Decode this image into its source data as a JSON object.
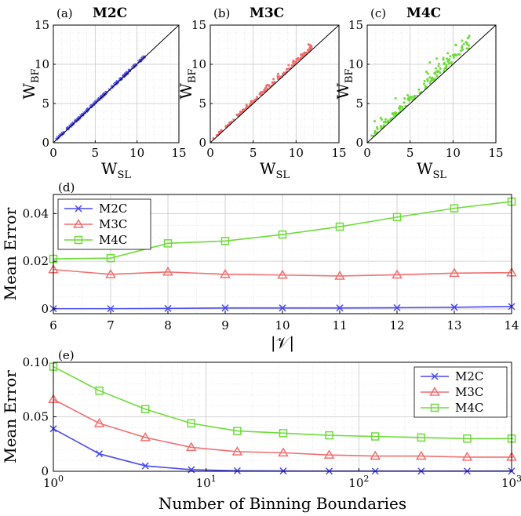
{
  "chart_data": [
    {
      "type": "scatter",
      "panel": "(a)",
      "title": "M2C",
      "xlabel": "W",
      "xlabel_sub": "SL",
      "ylabel": "W",
      "ylabel_sub": "BF",
      "xlim": [
        0,
        15
      ],
      "ylim": [
        0,
        15
      ],
      "xticks": [
        0,
        5,
        10,
        15
      ],
      "yticks": [
        0,
        5,
        10,
        15
      ],
      "grid": true,
      "color": "#4a4af0",
      "reference_line": "y = x",
      "spread": 0.15
    },
    {
      "type": "scatter",
      "panel": "(b)",
      "title": "M3C",
      "xlabel": "W",
      "xlabel_sub": "SL",
      "ylabel": "W",
      "ylabel_sub": "BF",
      "xlim": [
        0,
        15
      ],
      "ylim": [
        0,
        15
      ],
      "xticks": [
        0,
        5,
        10,
        15
      ],
      "yticks": [
        0,
        5,
        10,
        15
      ],
      "grid": true,
      "color": "#f07070",
      "reference_line": "y = x",
      "spread": 0.6
    },
    {
      "type": "scatter",
      "panel": "(c)",
      "title": "M4C",
      "xlabel": "W",
      "xlabel_sub": "SL",
      "ylabel": "W",
      "ylabel_sub": "BF",
      "xlim": [
        0,
        15
      ],
      "ylim": [
        0,
        15
      ],
      "xticks": [
        0,
        5,
        10,
        15
      ],
      "yticks": [
        0,
        5,
        10,
        15
      ],
      "grid": true,
      "color": "#6edc3a",
      "reference_line": "y = x",
      "spread": 1.3
    },
    {
      "type": "line",
      "panel": "(d)",
      "xlabel": "|𝒱|",
      "ylabel": "Mean Error",
      "x": [
        6,
        7,
        8,
        9,
        10,
        11,
        12,
        13,
        14
      ],
      "xlim": [
        6,
        14
      ],
      "ylim": [
        -0.002,
        0.048
      ],
      "xticks": [
        6,
        7,
        8,
        9,
        10,
        11,
        12,
        13,
        14
      ],
      "yticks": [
        0,
        0.02,
        0.04
      ],
      "ytick_labels": [
        "0",
        "0.02",
        "0.04"
      ],
      "grid": true,
      "legend": "top-left",
      "series": [
        {
          "name": "M2C",
          "color": "#4a4af0",
          "marker": "x",
          "values": [
            0.0001,
            0.0001,
            0.0002,
            0.0004,
            0.0004,
            0.0004,
            0.0005,
            0.0007,
            0.001
          ]
        },
        {
          "name": "M3C",
          "color": "#f07070",
          "marker": "triangle",
          "values": [
            0.0165,
            0.0145,
            0.0155,
            0.0145,
            0.0142,
            0.0138,
            0.0143,
            0.015,
            0.0152
          ]
        },
        {
          "name": "M4C",
          "color": "#6edc3a",
          "marker": "square",
          "values": [
            0.021,
            0.0213,
            0.0275,
            0.0285,
            0.0312,
            0.0345,
            0.0385,
            0.0422,
            0.045
          ]
        }
      ]
    },
    {
      "type": "line",
      "panel": "(e)",
      "xlabel": "Number of Binning Boundaries",
      "ylabel": "Mean Error",
      "xscale": "log",
      "x": [
        1,
        2,
        4,
        8,
        16,
        32,
        64,
        128,
        256,
        512,
        1024
      ],
      "xlim": [
        1,
        1000
      ],
      "ylim": [
        0,
        0.1
      ],
      "xticks": [
        1,
        10,
        100,
        1000
      ],
      "xtick_labels": [
        "10^0",
        "10^1",
        "10^2",
        "10^3"
      ],
      "yticks": [
        0,
        0.05,
        0.1
      ],
      "ytick_labels": [
        "0",
        "0.05",
        "0.10"
      ],
      "grid": true,
      "legend": "top-right",
      "series": [
        {
          "name": "M2C",
          "color": "#4a4af0",
          "marker": "x",
          "values": [
            0.039,
            0.016,
            0.005,
            0.0015,
            0.0005,
            0.0003,
            0.0002,
            0.0002,
            0.0002,
            0.0002,
            0.0002
          ]
        },
        {
          "name": "M3C",
          "color": "#f07070",
          "marker": "triangle",
          "values": [
            0.066,
            0.044,
            0.031,
            0.022,
            0.018,
            0.017,
            0.015,
            0.014,
            0.014,
            0.013,
            0.013
          ]
        },
        {
          "name": "M4C",
          "color": "#6edc3a",
          "marker": "square",
          "values": [
            0.096,
            0.074,
            0.057,
            0.044,
            0.037,
            0.035,
            0.033,
            0.032,
            0.031,
            0.03,
            0.03
          ]
        }
      ]
    }
  ]
}
